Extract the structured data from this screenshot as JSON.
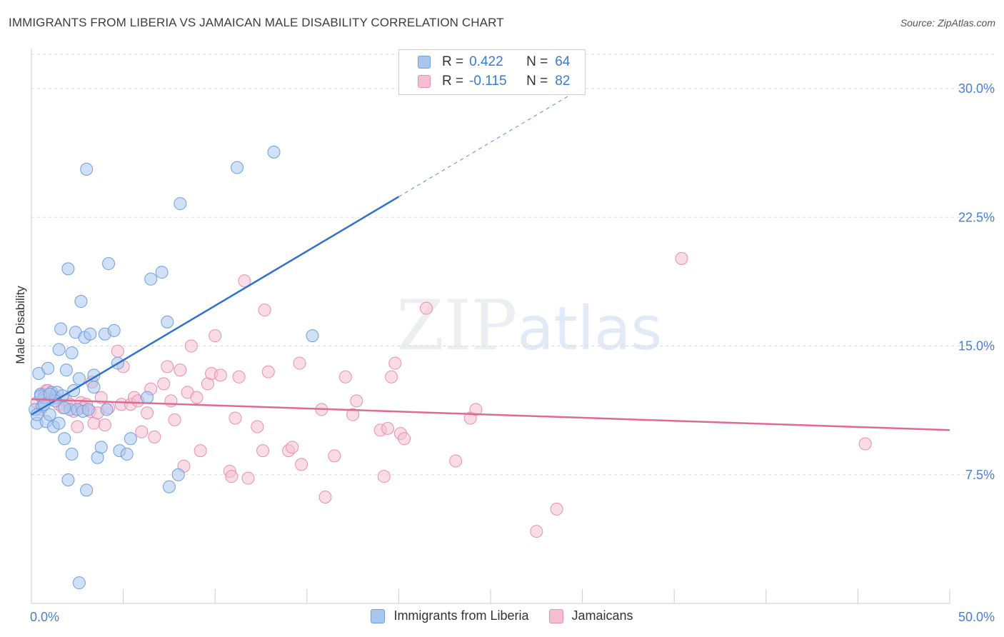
{
  "chart": {
    "title": "IMMIGRANTS FROM LIBERIA VS JAMAICAN MALE DISABILITY CORRELATION CHART",
    "source": "Source: ZipAtlas.com",
    "watermark_left": "ZIP",
    "watermark_right": "atlas"
  },
  "legend": {
    "series1": {
      "r_label": "R =",
      "r_value": "0.422",
      "n_label": "N =",
      "n_value": "64"
    },
    "series2": {
      "r_label": "R =",
      "r_value": "-0.115",
      "n_label": "N =",
      "n_value": "82"
    }
  },
  "colors": {
    "blue_fill": "#a9c6ee",
    "blue_stroke": "#6f9fdc",
    "blue_line": "#2f72cc",
    "pink_fill": "#f6bfd1",
    "pink_stroke": "#e88fae",
    "pink_line": "#e06a96",
    "grid": "#dcdcdc",
    "tick_text": "#4a7fd0"
  },
  "chart_data": {
    "type": "scatter",
    "title": "IMMIGRANTS FROM LIBERIA VS JAMAICAN MALE DISABILITY CORRELATION CHART",
    "xlabel": "",
    "ylabel": "Male Disability",
    "xlim": [
      0,
      50
    ],
    "ylim": [
      0,
      32
    ],
    "x_tick_labels": [
      "0.0%",
      "50.0%"
    ],
    "y_ticks": [
      7.5,
      15.0,
      22.5,
      30.0
    ],
    "y_tick_labels": [
      "7.5%",
      "15.0%",
      "22.5%",
      "30.0%"
    ],
    "grid": true,
    "legend_position": "top-center",
    "series": [
      {
        "name": "Immigrants from Liberia",
        "r": 0.422,
        "n": 64,
        "trend": {
          "x0": 0,
          "y0": 11.0,
          "x1": 20,
          "y1": 23.7,
          "dash_to_x": 30
        },
        "points": [
          [
            0.2,
            11.3
          ],
          [
            0.3,
            10.5
          ],
          [
            0.4,
            13.4
          ],
          [
            0.5,
            12.2
          ],
          [
            0.6,
            11.5
          ],
          [
            0.7,
            12.0
          ],
          [
            0.8,
            10.6
          ],
          [
            0.9,
            13.7
          ],
          [
            1.0,
            11.0
          ],
          [
            1.1,
            12.3
          ],
          [
            1.2,
            10.3
          ],
          [
            1.3,
            12.0
          ],
          [
            1.4,
            12.3
          ],
          [
            1.5,
            10.5
          ],
          [
            1.5,
            14.8
          ],
          [
            1.6,
            16.0
          ],
          [
            1.7,
            12.1
          ],
          [
            1.8,
            9.6
          ],
          [
            1.9,
            13.6
          ],
          [
            2.0,
            19.5
          ],
          [
            2.0,
            7.2
          ],
          [
            2.1,
            11.3
          ],
          [
            2.2,
            14.6
          ],
          [
            2.2,
            8.7
          ],
          [
            2.4,
            15.8
          ],
          [
            2.5,
            11.3
          ],
          [
            2.6,
            13.1
          ],
          [
            2.7,
            17.6
          ],
          [
            2.8,
            11.2
          ],
          [
            2.9,
            15.5
          ],
          [
            3.0,
            25.3
          ],
          [
            3.0,
            6.6
          ],
          [
            3.1,
            11.3
          ],
          [
            3.2,
            15.7
          ],
          [
            3.4,
            12.6
          ],
          [
            3.4,
            13.3
          ],
          [
            3.6,
            8.5
          ],
          [
            3.8,
            9.1
          ],
          [
            4.0,
            15.7
          ],
          [
            4.1,
            11.3
          ],
          [
            4.2,
            19.8
          ],
          [
            4.5,
            15.9
          ],
          [
            4.7,
            14.0
          ],
          [
            4.8,
            8.9
          ],
          [
            5.2,
            8.7
          ],
          [
            5.4,
            9.6
          ],
          [
            6.3,
            12.0
          ],
          [
            6.5,
            18.9
          ],
          [
            7.1,
            19.3
          ],
          [
            7.4,
            16.4
          ],
          [
            7.5,
            6.8
          ],
          [
            8.0,
            7.5
          ],
          [
            8.1,
            23.3
          ],
          [
            11.2,
            25.4
          ],
          [
            13.2,
            26.3
          ],
          [
            15.3,
            15.6
          ],
          [
            2.6,
            1.2
          ],
          [
            0.5,
            12.1
          ],
          [
            1.3,
            11.8
          ],
          [
            0.3,
            11.0
          ],
          [
            1.0,
            12.2
          ],
          [
            2.3,
            12.4
          ],
          [
            0.7,
            11.6
          ],
          [
            1.8,
            11.4
          ]
        ]
      },
      {
        "name": "Jamaicans",
        "r": -0.115,
        "n": 82,
        "trend": {
          "x0": 0,
          "y0": 11.9,
          "x1": 50,
          "y1": 10.1
        },
        "points": [
          [
            0.3,
            11.7
          ],
          [
            0.5,
            11.3
          ],
          [
            0.7,
            12.2
          ],
          [
            0.8,
            12.4
          ],
          [
            1.0,
            11.9
          ],
          [
            1.2,
            12.1
          ],
          [
            1.5,
            11.6
          ],
          [
            1.7,
            11.4
          ],
          [
            1.9,
            11.8
          ],
          [
            2.1,
            11.6
          ],
          [
            2.3,
            11.2
          ],
          [
            2.5,
            10.3
          ],
          [
            2.7,
            11.7
          ],
          [
            2.8,
            11.4
          ],
          [
            3.0,
            11.6
          ],
          [
            3.2,
            11.2
          ],
          [
            3.3,
            12.9
          ],
          [
            3.4,
            10.5
          ],
          [
            3.6,
            11.1
          ],
          [
            3.8,
            12.0
          ],
          [
            4.0,
            10.4
          ],
          [
            4.2,
            11.4
          ],
          [
            4.7,
            14.7
          ],
          [
            4.9,
            11.6
          ],
          [
            5.0,
            13.8
          ],
          [
            5.4,
            11.6
          ],
          [
            5.6,
            12.0
          ],
          [
            5.8,
            11.8
          ],
          [
            6.0,
            10.0
          ],
          [
            6.3,
            11.1
          ],
          [
            6.5,
            12.5
          ],
          [
            6.7,
            9.7
          ],
          [
            7.2,
            12.8
          ],
          [
            7.4,
            13.8
          ],
          [
            7.6,
            11.8
          ],
          [
            7.8,
            10.7
          ],
          [
            8.1,
            13.6
          ],
          [
            8.3,
            8.0
          ],
          [
            8.5,
            12.3
          ],
          [
            8.7,
            15.0
          ],
          [
            9.0,
            12.0
          ],
          [
            9.2,
            8.9
          ],
          [
            9.6,
            12.8
          ],
          [
            9.8,
            13.4
          ],
          [
            10.0,
            15.6
          ],
          [
            10.3,
            13.3
          ],
          [
            10.8,
            7.7
          ],
          [
            10.9,
            7.4
          ],
          [
            11.1,
            10.8
          ],
          [
            11.3,
            13.2
          ],
          [
            11.6,
            18.8
          ],
          [
            11.8,
            7.3
          ],
          [
            12.3,
            10.3
          ],
          [
            12.6,
            8.9
          ],
          [
            12.7,
            17.1
          ],
          [
            12.9,
            13.5
          ],
          [
            14.0,
            8.9
          ],
          [
            14.2,
            9.1
          ],
          [
            14.6,
            14.0
          ],
          [
            14.7,
            8.1
          ],
          [
            15.8,
            11.3
          ],
          [
            16.0,
            6.2
          ],
          [
            16.5,
            8.6
          ],
          [
            17.1,
            13.2
          ],
          [
            17.5,
            11.0
          ],
          [
            17.7,
            11.8
          ],
          [
            19.0,
            10.1
          ],
          [
            19.2,
            7.4
          ],
          [
            19.4,
            10.2
          ],
          [
            19.6,
            13.2
          ],
          [
            19.8,
            14.0
          ],
          [
            20.1,
            9.9
          ],
          [
            20.3,
            9.6
          ],
          [
            21.5,
            17.2
          ],
          [
            23.1,
            8.3
          ],
          [
            23.9,
            10.8
          ],
          [
            24.2,
            11.3
          ],
          [
            27.5,
            4.2
          ],
          [
            28.6,
            5.5
          ],
          [
            35.4,
            20.1
          ],
          [
            45.4,
            9.3
          ],
          [
            0.9,
            12.4
          ]
        ]
      }
    ]
  },
  "bottom_legend": {
    "item1": "Immigrants from Liberia",
    "item2": "Jamaicans"
  }
}
